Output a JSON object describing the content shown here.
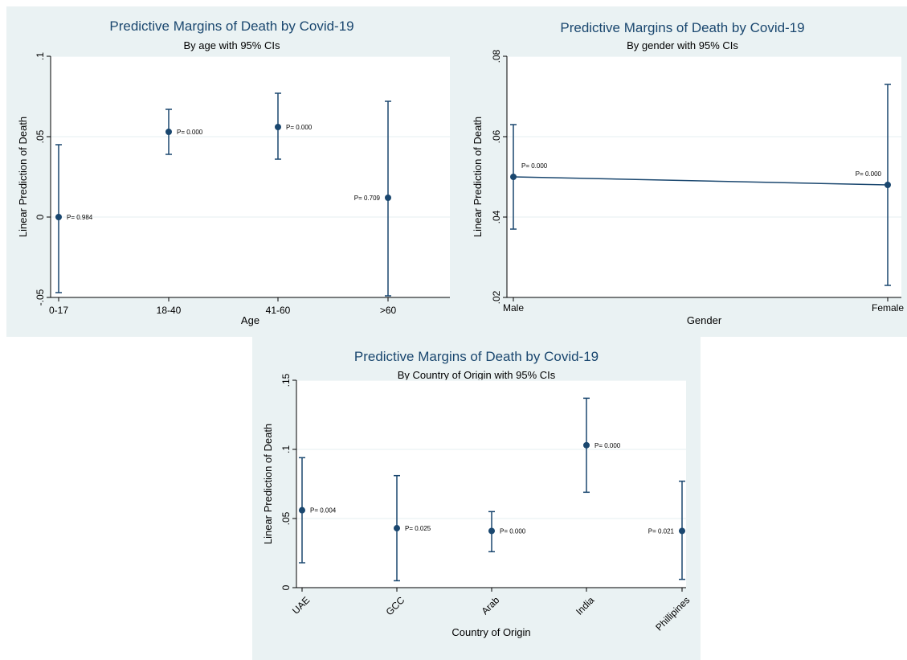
{
  "chart_data": [
    {
      "type": "scatter",
      "title": "Predictive Margins of Death by Covid-19",
      "subtitle": "By age with 95% CIs",
      "xlabel": "Age",
      "ylabel": "Linear Prediction of Death",
      "categories": [
        "0-17",
        "18-40",
        "41-60",
        ">60"
      ],
      "values": [
        0.0,
        0.053,
        0.056,
        0.012
      ],
      "ci_low": [
        -0.047,
        0.039,
        0.036,
        -0.049
      ],
      "ci_high": [
        0.045,
        0.067,
        0.077,
        0.072
      ],
      "annotations": [
        "P= 0.984",
        "P= 0.000",
        "P= 0.000",
        "P= 0.709"
      ],
      "annotation_side": [
        "right",
        "right",
        "right",
        "left"
      ],
      "connect": false,
      "yticks": [
        -0.05,
        0,
        0.05,
        0.1
      ],
      "ytick_labels": [
        "-.05",
        "0",
        ".05",
        ".1"
      ],
      "ylim": [
        -0.05,
        0.1
      ],
      "grid": true
    },
    {
      "type": "line",
      "title": "Predictive Margins of Death by Covid-19",
      "subtitle": "By gender with 95% CIs",
      "xlabel": "Gender",
      "ylabel": "Linear Prediction of Death",
      "categories": [
        "Male",
        "Female"
      ],
      "values": [
        0.05,
        0.048
      ],
      "ci_low": [
        0.037,
        0.023
      ],
      "ci_high": [
        0.063,
        0.073
      ],
      "annotations": [
        "P= 0.000",
        "P= 0.000"
      ],
      "annotation_side": [
        "above-right",
        "above-left"
      ],
      "connect": true,
      "yticks": [
        0.02,
        0.04,
        0.06,
        0.08
      ],
      "ytick_labels": [
        ".02",
        ".04",
        ".06",
        ".08"
      ],
      "ylim": [
        0.02,
        0.08
      ],
      "grid": true
    },
    {
      "type": "scatter",
      "title": "Predictive Margins of Death by Covid-19",
      "subtitle": "By Country of Origin with 95% CIs",
      "xlabel": "Country of Origin",
      "ylabel": "Linear Prediction of Death",
      "categories": [
        "UAE",
        "GCC",
        "Arab",
        "India",
        "Phillipines"
      ],
      "values": [
        0.056,
        0.043,
        0.041,
        0.103,
        0.041
      ],
      "ci_low": [
        0.018,
        0.005,
        0.026,
        0.069,
        0.006
      ],
      "ci_high": [
        0.094,
        0.081,
        0.055,
        0.137,
        0.077
      ],
      "annotations": [
        "P= 0.004",
        "P= 0.025",
        "P= 0.000",
        "P= 0.000",
        "P= 0.021"
      ],
      "annotation_side": [
        "right",
        "right",
        "right",
        "right",
        "left"
      ],
      "connect": false,
      "rotate_xticks": true,
      "yticks": [
        0,
        0.05,
        0.1,
        0.15
      ],
      "ytick_labels": [
        "0",
        ".05",
        ".1",
        ".15"
      ],
      "ylim": [
        0,
        0.15
      ],
      "grid": true
    }
  ],
  "colors": {
    "background": "#eaf2f3",
    "plot_area": "#ffffff",
    "marker": "#1a476f",
    "title": "#1a476f",
    "grid": "#eaf2f3"
  }
}
